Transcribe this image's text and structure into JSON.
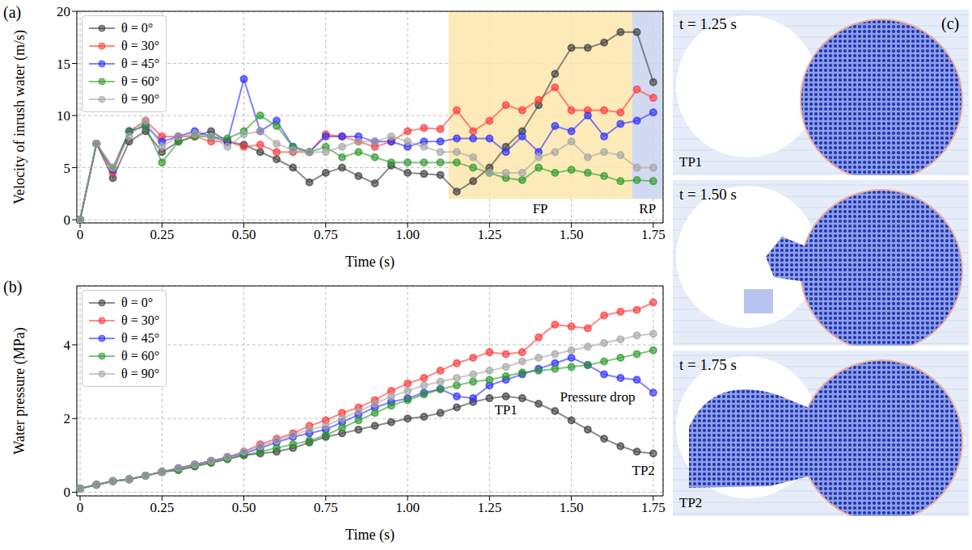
{
  "chart_data": [
    {
      "panel": "(a)",
      "type": "line",
      "x_label": "Time (s)",
      "y_label": "Velocity of inrush water (m/s)",
      "xlim": [
        -0.01,
        1.78
      ],
      "xticks": [
        0,
        0.25,
        {
          "value": 0.5,
          "label": "0.50"
        },
        0.75,
        {
          "value": 1,
          "label": "1.00"
        },
        1.25,
        {
          "value": 1.5,
          "label": "1.50"
        },
        1.75
      ],
      "ylim": [
        -0.3,
        20
      ],
      "yticks": [
        0,
        5,
        10,
        15,
        20
      ],
      "grid": true,
      "legend": "upper left",
      "marker": "circle",
      "x": [
        0,
        0.05,
        0.1,
        0.15,
        0.2,
        0.25,
        0.3,
        0.35,
        0.4,
        0.45,
        0.5,
        0.55,
        0.6,
        0.65,
        0.7,
        0.75,
        0.8,
        0.85,
        0.9,
        0.95,
        1,
        1.05,
        1.1,
        1.15,
        1.2,
        1.25,
        1.3,
        1.35,
        1.4,
        1.45,
        1.5,
        1.55,
        1.6,
        1.65,
        1.7,
        1.75
      ],
      "series": [
        {
          "name": "θ = 0°",
          "color": "#404040",
          "values": [
            0,
            7.3,
            4.0,
            7.5,
            8.5,
            6.5,
            7.5,
            8.0,
            8.5,
            7.5,
            7.2,
            6.5,
            5.8,
            5.0,
            3.6,
            4.5,
            5.0,
            4.2,
            3.5,
            5.2,
            4.5,
            4.4,
            4.3,
            2.7,
            3.7,
            5.0,
            7.0,
            8.5,
            11.0,
            14.0,
            16.5,
            16.5,
            17.0,
            18.0,
            18.0,
            13.2
          ]
        },
        {
          "name": "θ = 30°",
          "color": "#ff3b3b",
          "values": [
            0,
            7.3,
            4.5,
            8.5,
            9.5,
            8.0,
            8.0,
            8.0,
            7.5,
            7.5,
            7.0,
            7.2,
            6.5,
            6.5,
            6.5,
            8.2,
            8.0,
            7.5,
            7.0,
            7.5,
            8.5,
            8.8,
            8.7,
            10.5,
            8.5,
            9.5,
            11,
            10.5,
            11.5,
            12.7,
            10.5,
            10.5,
            10.5,
            10.3,
            12.5,
            11.7
          ]
        },
        {
          "name": "θ = 45°",
          "color": "#2f2fff",
          "values": [
            0,
            7.3,
            4.8,
            8.5,
            9.0,
            7.5,
            8.0,
            8.5,
            8.0,
            7.5,
            13.5,
            8.5,
            9.5,
            7.0,
            6.5,
            8.0,
            8.0,
            8.0,
            7.5,
            7.5,
            7.0,
            7.5,
            7.5,
            7.8,
            7.8,
            7.8,
            6.5,
            8.0,
            6.5,
            9.0,
            8.5,
            10,
            8.0,
            9.2,
            9.5,
            10.3
          ]
        },
        {
          "name": "θ = 60°",
          "color": "#2e9b2e",
          "values": [
            0,
            7.3,
            5.0,
            8.5,
            9.0,
            5.5,
            7.5,
            8.0,
            8.0,
            7.8,
            8.5,
            10.0,
            9.0,
            7.0,
            6.5,
            7.0,
            6.0,
            6.5,
            6.0,
            5.5,
            5.5,
            5.5,
            5.5,
            5.5,
            5.0,
            4.5,
            4.0,
            3.8,
            5.0,
            4.5,
            4.8,
            4.5,
            4.2,
            3.7,
            3.8,
            3.7
          ]
        },
        {
          "name": "θ = 90°",
          "color": "#a6a6a6",
          "values": [
            0,
            7.3,
            5.0,
            8.0,
            9.5,
            7.0,
            8.0,
            8.2,
            8.0,
            7.0,
            8.2,
            8.5,
            7.3,
            6.7,
            6.5,
            6.5,
            7.0,
            7.5,
            7.5,
            8.0,
            7.5,
            7.0,
            6.5,
            6.5,
            6.0,
            4.5,
            4.5,
            4.5,
            6.0,
            6.5,
            7.5,
            6.0,
            6.5,
            6.2,
            5.0,
            5.0
          ]
        }
      ],
      "shaded_regions": [
        {
          "label": "FP",
          "x": [
            1.125,
            1.685
          ],
          "y": [
            2,
            20
          ],
          "color": "#fce6ad"
        },
        {
          "label": "RP",
          "x": [
            1.685,
            1.78
          ],
          "y": [
            2,
            20
          ],
          "color": "#c9d3ef"
        }
      ]
    },
    {
      "panel": "(b)",
      "type": "line",
      "x_label": "Time (s)",
      "y_label": "Water pressure (MPa)",
      "xlim": [
        -0.01,
        1.78
      ],
      "xticks": [
        0,
        0.25,
        {
          "value": 0.5,
          "label": "0.50"
        },
        0.75,
        {
          "value": 1,
          "label": "1.00"
        },
        1.25,
        {
          "value": 1.5,
          "label": "1.50"
        },
        1.75
      ],
      "ylim": [
        -0.1,
        5.6
      ],
      "yticks": [
        0,
        2,
        4
      ],
      "grid": true,
      "legend": "upper left",
      "marker": "circle",
      "x": [
        0,
        0.05,
        0.1,
        0.15,
        0.2,
        0.25,
        0.3,
        0.35,
        0.4,
        0.45,
        0.5,
        0.55,
        0.6,
        0.65,
        0.7,
        0.75,
        0.8,
        0.85,
        0.9,
        0.95,
        1,
        1.05,
        1.1,
        1.15,
        1.2,
        1.25,
        1.3,
        1.35,
        1.4,
        1.45,
        1.5,
        1.55,
        1.6,
        1.65,
        1.7,
        1.75
      ],
      "series": [
        {
          "name": "θ = 0°",
          "color": "#404040",
          "values": [
            0.1,
            0.2,
            0.3,
            0.35,
            0.45,
            0.55,
            0.6,
            0.7,
            0.8,
            0.9,
            1.0,
            1.05,
            1.1,
            1.2,
            1.35,
            1.5,
            1.6,
            1.7,
            1.8,
            1.9,
            2.0,
            2.05,
            2.15,
            2.3,
            2.45,
            2.55,
            2.6,
            2.55,
            2.4,
            2.2,
            1.95,
            1.7,
            1.45,
            1.25,
            1.1,
            1.05
          ]
        },
        {
          "name": "θ = 30°",
          "color": "#ff3b3b",
          "values": [
            0.1,
            0.2,
            0.3,
            0.35,
            0.45,
            0.55,
            0.65,
            0.75,
            0.85,
            0.95,
            1.1,
            1.3,
            1.45,
            1.6,
            1.8,
            1.95,
            2.15,
            2.3,
            2.5,
            2.75,
            2.95,
            3.1,
            3.3,
            3.5,
            3.65,
            3.8,
            3.75,
            3.8,
            4.2,
            4.55,
            4.5,
            4.45,
            4.8,
            4.9,
            4.95,
            5.15
          ]
        },
        {
          "name": "θ = 45°",
          "color": "#2f2fff",
          "values": [
            0.1,
            0.2,
            0.3,
            0.35,
            0.45,
            0.55,
            0.65,
            0.75,
            0.85,
            0.95,
            1.05,
            1.2,
            1.35,
            1.5,
            1.6,
            1.7,
            1.9,
            2.1,
            2.3,
            2.45,
            2.55,
            2.7,
            2.8,
            2.6,
            2.55,
            2.9,
            3.05,
            3.2,
            3.35,
            3.5,
            3.65,
            3.45,
            3.2,
            3.1,
            3.05,
            2.7
          ]
        },
        {
          "name": "θ = 60°",
          "color": "#2e9b2e",
          "values": [
            0.1,
            0.2,
            0.3,
            0.35,
            0.45,
            0.55,
            0.6,
            0.7,
            0.8,
            0.9,
            1.0,
            1.1,
            1.2,
            1.3,
            1.4,
            1.55,
            1.75,
            1.95,
            2.15,
            2.35,
            2.5,
            2.65,
            2.8,
            2.9,
            3.0,
            3.05,
            3.15,
            3.25,
            3.3,
            3.35,
            3.4,
            3.45,
            3.55,
            3.65,
            3.75,
            3.85
          ]
        },
        {
          "name": "θ = 90°",
          "color": "#a6a6a6",
          "values": [
            0.1,
            0.2,
            0.3,
            0.35,
            0.45,
            0.55,
            0.65,
            0.75,
            0.85,
            0.95,
            1.1,
            1.25,
            1.4,
            1.55,
            1.7,
            1.8,
            2.0,
            2.2,
            2.4,
            2.6,
            2.75,
            2.9,
            3.0,
            3.1,
            3.2,
            3.3,
            3.4,
            3.55,
            3.65,
            3.75,
            3.85,
            3.95,
            4.05,
            4.15,
            4.25,
            4.3
          ]
        }
      ],
      "annotations": [
        {
          "text": "TP1",
          "x": 1.3,
          "y": 2.25
        },
        {
          "text": "Pressure drop",
          "x": 1.58,
          "y": 2.6
        },
        {
          "text": "TP2",
          "x": 1.72,
          "y": 0.6
        }
      ]
    }
  ],
  "panel_c": {
    "label": "(c)",
    "frames": [
      {
        "time": "t = 1.25 s",
        "tag": "TP1"
      },
      {
        "time": "t = 1.50 s"
      },
      {
        "time": "t = 1.75 s",
        "tag": "TP2"
      }
    ]
  }
}
